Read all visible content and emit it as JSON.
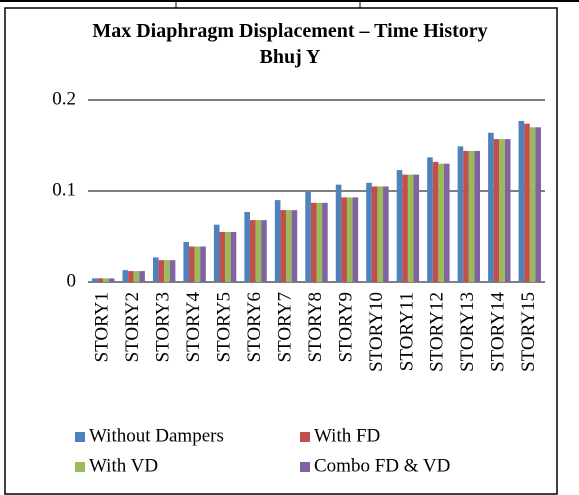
{
  "chart_data": {
    "type": "bar",
    "title": "Max Diaphragm Displacement – Time History Bhuj Y",
    "categories": [
      "STORY1",
      "STORY2",
      "STORY3",
      "STORY4",
      "STORY5",
      "STORY6",
      "STORY7",
      "STORY8",
      "STORY9",
      "STORY10",
      "STORY11",
      "STORY12",
      "STORY13",
      "STORY14",
      "STORY15"
    ],
    "series": [
      {
        "name": "Without Dampers",
        "color": "#4f81bd",
        "values": [
          0.004,
          0.013,
          0.027,
          0.044,
          0.063,
          0.077,
          0.09,
          0.099,
          0.107,
          0.109,
          0.123,
          0.137,
          0.149,
          0.164,
          0.177
        ]
      },
      {
        "name": "With FD",
        "color": "#c0504d",
        "values": [
          0.004,
          0.012,
          0.024,
          0.039,
          0.055,
          0.068,
          0.079,
          0.087,
          0.093,
          0.105,
          0.118,
          0.132,
          0.144,
          0.157,
          0.174
        ]
      },
      {
        "name": "With VD",
        "color": "#9bbb59",
        "values": [
          0.004,
          0.012,
          0.024,
          0.039,
          0.055,
          0.068,
          0.079,
          0.087,
          0.093,
          0.105,
          0.118,
          0.13,
          0.144,
          0.157,
          0.17
        ]
      },
      {
        "name": "Combo FD & VD",
        "color": "#8064a2",
        "values": [
          0.004,
          0.012,
          0.024,
          0.039,
          0.055,
          0.068,
          0.079,
          0.087,
          0.093,
          0.105,
          0.118,
          0.13,
          0.144,
          0.157,
          0.17
        ]
      }
    ],
    "ylim": [
      0,
      0.2
    ],
    "yticks": [
      0,
      0.1,
      0.2
    ],
    "grid": true,
    "legend": "bottom"
  }
}
